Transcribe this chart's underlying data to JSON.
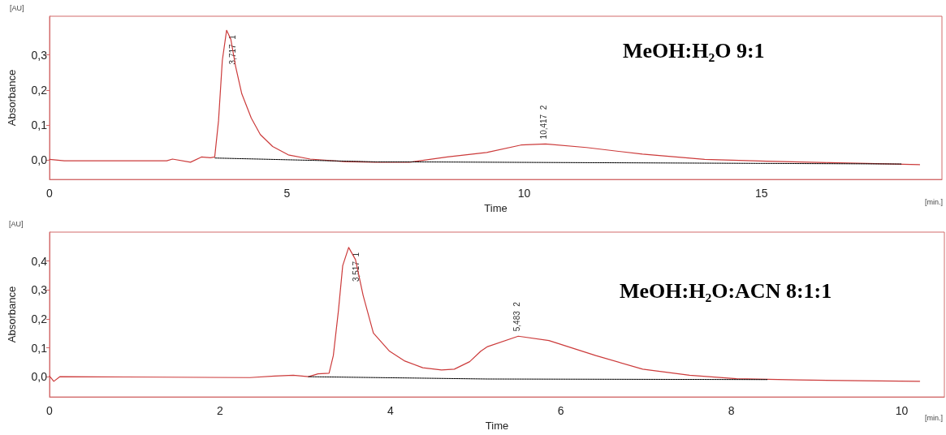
{
  "chart_data": [
    {
      "type": "line",
      "title": "MeOH:H₂O 9:1",
      "xlabel": "Time",
      "ylabel": "Absorbance",
      "xlim": [
        0,
        18.8
      ],
      "xticks": [
        0,
        5,
        10,
        15
      ],
      "ylim": [
        -0.055,
        0.41
      ],
      "yticks": [
        {
          "value": 0,
          "label": "0,0"
        },
        {
          "value": 0.1,
          "label": "0,1"
        },
        {
          "value": 0.2,
          "label": "0,2"
        },
        {
          "value": 0.3,
          "label": "0,3"
        }
      ],
      "grid": false,
      "marker": "none",
      "series": [
        {
          "color": "#cc3b3b",
          "line_style": "solid",
          "x": [
            0,
            0.31,
            2.47,
            2.59,
            2.97,
            3.2,
            3.39,
            3.48,
            3.56,
            3.64,
            3.73,
            3.82,
            3.92,
            4.05,
            4.25,
            4.44,
            4.7,
            5.03,
            5.49,
            6.21,
            6.87,
            7.59,
            8.38,
            9.21,
            9.93,
            10.45,
            11.31,
            12.49,
            13.8,
            15.11,
            16.42,
            17.41,
            18.33
          ],
          "values": [
            0.002,
            -0.002,
            -0.002,
            0.003,
            -0.006,
            0.009,
            0.007,
            0.009,
            0.112,
            0.284,
            0.37,
            0.344,
            0.267,
            0.189,
            0.12,
            0.073,
            0.039,
            0.015,
            0.003,
            -0.004,
            -0.006,
            -0.006,
            0.009,
            0.022,
            0.043,
            0.046,
            0.036,
            0.017,
            0.002,
            -0.003,
            -0.007,
            -0.01,
            -0.013
          ]
        },
        {
          "color": "#000000",
          "line_style": "dashed",
          "x": [
            3.48,
            6.9,
            7.6,
            17.94
          ],
          "values": [
            0.006,
            -0.005,
            -0.005,
            -0.011
          ]
        }
      ],
      "annotations": [
        "[AU]",
        "[min.]",
        {
          "text": "3,717  1",
          "x": 3.717,
          "y": 0.37
        },
        {
          "text": "10,417  2",
          "x": 10.417,
          "y": 0.046
        }
      ]
    },
    {
      "type": "line",
      "title": "MeOH:H₂O:ACN 8:1:1",
      "xlabel": "Time",
      "ylabel": "Absorbance",
      "xlim": [
        0,
        10.5
      ],
      "xticks": [
        0,
        2,
        4,
        6,
        8,
        10
      ],
      "ylim": [
        -0.07,
        0.5
      ],
      "yticks": [
        {
          "value": 0,
          "label": "0,0"
        },
        {
          "value": 0.1,
          "label": "0,1"
        },
        {
          "value": 0.2,
          "label": "0,2"
        },
        {
          "value": 0.3,
          "label": "0,3"
        },
        {
          "value": 0.4,
          "label": "0,4"
        }
      ],
      "grid": false,
      "marker": "none",
      "series": [
        {
          "color": "#cc3b3b",
          "line_style": "solid",
          "x": [
            0,
            0.05,
            0.12,
            0.9,
            2.35,
            2.64,
            2.86,
            3.04,
            3.15,
            3.28,
            3.33,
            3.39,
            3.44,
            3.51,
            3.59,
            3.68,
            3.8,
            3.99,
            4.17,
            4.38,
            4.6,
            4.75,
            4.93,
            5.06,
            5.14,
            5.5,
            5.86,
            6.41,
            6.96,
            7.51,
            8.06,
            8.79,
            9.52,
            10.21
          ],
          "values": [
            0.002,
            -0.016,
            0,
            -0.001,
            -0.003,
            0.002,
            0.005,
            0,
            0.01,
            0.012,
            0.073,
            0.229,
            0.384,
            0.447,
            0.405,
            0.281,
            0.151,
            0.088,
            0.054,
            0.031,
            0.023,
            0.026,
            0.052,
            0.088,
            0.104,
            0.14,
            0.125,
            0.073,
            0.026,
            0.005,
            -0.007,
            -0.011,
            -0.014,
            -0.016
          ]
        },
        {
          "color": "#000000",
          "line_style": "dashed",
          "x": [
            3.04,
            5.14,
            8.42
          ],
          "values": [
            0,
            -0.008,
            -0.01
          ]
        }
      ],
      "annotations": [
        "[AU]",
        "[min.]",
        {
          "text": "3,517  1",
          "x": 3.517,
          "y": 0.447
        },
        {
          "text": "5,483  2",
          "x": 5.483,
          "y": 0.14
        }
      ]
    }
  ]
}
